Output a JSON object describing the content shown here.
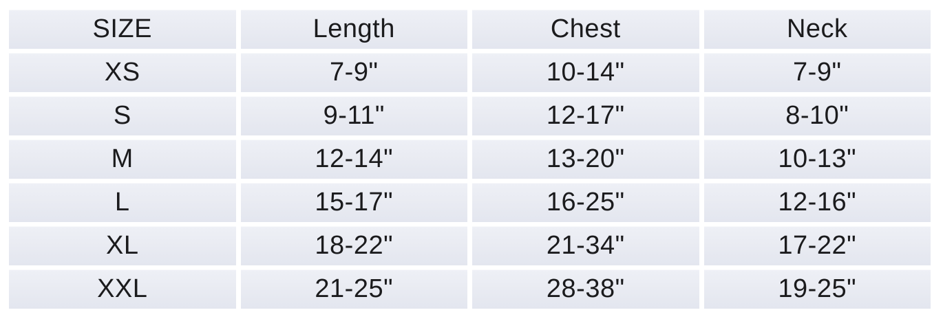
{
  "size_chart": {
    "headers": [
      "SIZE",
      "Length",
      "Chest",
      "Neck"
    ],
    "rows": [
      [
        "XS",
        "7-9\"",
        "10-14\"",
        "7-9\""
      ],
      [
        "S",
        "9-11\"",
        "12-17\"",
        "8-10\""
      ],
      [
        "M",
        "12-14\"",
        "13-20\"",
        "10-13\""
      ],
      [
        "L",
        "15-17\"",
        "16-25\"",
        "12-16\""
      ],
      [
        "XL",
        "18-22\"",
        "21-34\"",
        "17-22\""
      ],
      [
        "XXL",
        "21-25\"",
        "28-38\"",
        "19-25\""
      ]
    ]
  },
  "chart_data": {
    "type": "table",
    "title": "",
    "columns": [
      "SIZE",
      "Length",
      "Chest",
      "Neck"
    ],
    "rows": [
      {
        "size": "XS",
        "length": "7-9\"",
        "chest": "10-14\"",
        "neck": "7-9\""
      },
      {
        "size": "S",
        "length": "9-11\"",
        "chest": "12-17\"",
        "neck": "8-10\""
      },
      {
        "size": "M",
        "length": "12-14\"",
        "chest": "13-20\"",
        "neck": "10-13\""
      },
      {
        "size": "L",
        "length": "15-17\"",
        "chest": "16-25\"",
        "neck": "12-16\""
      },
      {
        "size": "XL",
        "length": "18-22\"",
        "chest": "21-34\"",
        "neck": "17-22\""
      },
      {
        "size": "XXL",
        "length": "21-25\"",
        "chest": "28-38\"",
        "neck": "19-25\""
      }
    ]
  },
  "colors": {
    "cell_background": "#e9ebf2",
    "gap": "#ffffff",
    "text": "#1b1b1d",
    "page_background": "#ffffff"
  }
}
